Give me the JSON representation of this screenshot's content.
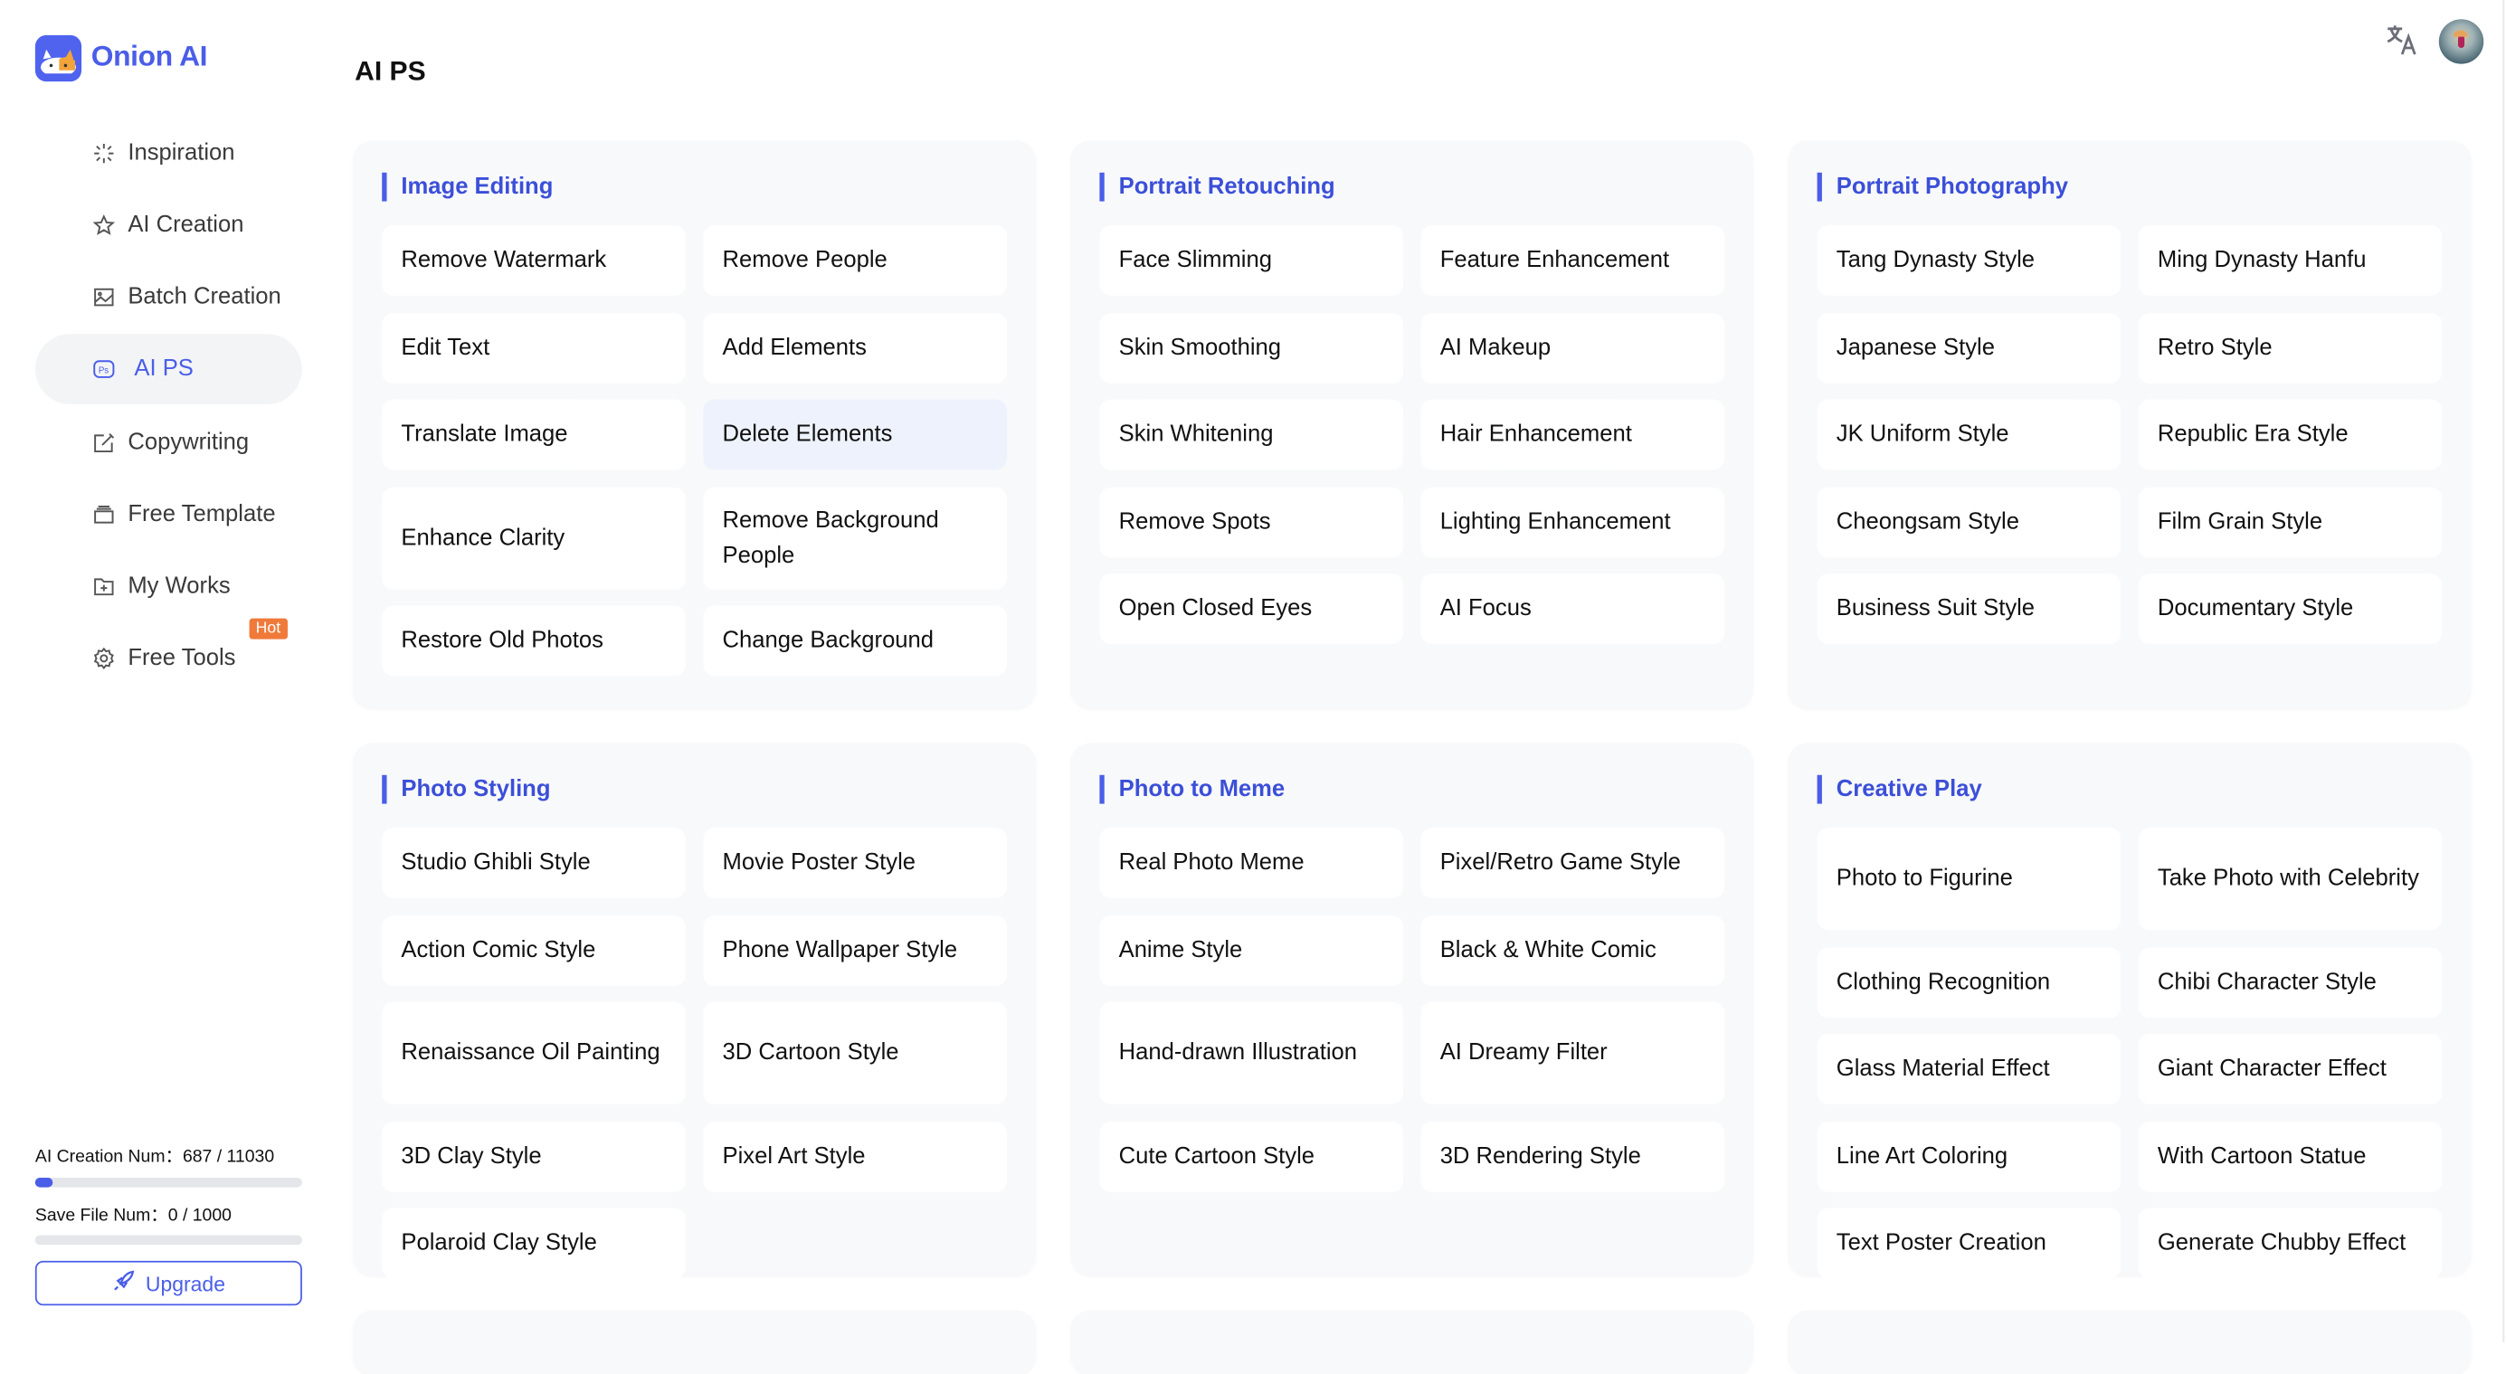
{
  "app": {
    "name": "Onion AI"
  },
  "sidebar": {
    "items": [
      {
        "label": "Inspiration",
        "icon": "sparkle-icon"
      },
      {
        "label": "AI Creation",
        "icon": "star-icon"
      },
      {
        "label": "Batch Creation",
        "icon": "image-icon"
      },
      {
        "label": "AI PS",
        "icon": "ps-icon",
        "active": true
      },
      {
        "label": "Copywriting",
        "icon": "edit-icon"
      },
      {
        "label": "Free Template",
        "icon": "template-icon"
      },
      {
        "label": "My Works",
        "icon": "folder-plus-icon"
      },
      {
        "label": "Free Tools",
        "icon": "gear-icon",
        "badge": "Hot"
      }
    ],
    "usage": {
      "ai_creation_label": "AI Creation Num：",
      "ai_creation_value": "687 / 11030",
      "ai_creation_fraction": 0.062,
      "save_file_label": "Save File Num：",
      "save_file_value": "0 / 1000",
      "save_file_fraction": 0
    },
    "upgrade_label": "Upgrade"
  },
  "header": {
    "title": "AI PS",
    "translate_icon": "translate-icon",
    "avatar": "user-avatar"
  },
  "colors": {
    "accent": "#4a5ee8",
    "hot": "#f07a3a",
    "card_bg": "#f8f9fb"
  },
  "sections": [
    {
      "title": "Image Editing",
      "items": [
        "Remove Watermark",
        "Remove People",
        "Edit Text",
        "Add Elements",
        "Translate Image",
        "Delete Elements",
        "Enhance Clarity",
        "Remove Background People",
        "Restore Old Photos",
        "Change Background"
      ],
      "highlighted": "Delete Elements"
    },
    {
      "title": "Portrait Retouching",
      "items": [
        "Face Slimming",
        "Feature Enhancement",
        "Skin Smoothing",
        "AI Makeup",
        "Skin Whitening",
        "Hair Enhancement",
        "Remove Spots",
        "Lighting Enhancement",
        "Open Closed Eyes",
        "AI Focus"
      ]
    },
    {
      "title": "Portrait Photography",
      "items": [
        "Tang Dynasty Style",
        "Ming Dynasty Hanfu",
        "Japanese Style",
        "Retro Style",
        "JK Uniform Style",
        "Republic Era Style",
        "Cheongsam Style",
        "Film Grain Style",
        "Business Suit Style",
        "Documentary Style"
      ]
    },
    {
      "title": "Photo Styling",
      "items": [
        "Studio Ghibli Style",
        "Movie Poster Style",
        "Action Comic Style",
        "Phone Wallpaper Style",
        "Renaissance Oil Painting",
        "3D Cartoon Style",
        "3D Clay Style",
        "Pixel Art Style",
        "Polaroid Clay Style"
      ]
    },
    {
      "title": "Photo to Meme",
      "items": [
        "Real Photo Meme",
        "Pixel/Retro Game Style",
        "Anime Style",
        "Black & White Comic",
        "Hand-drawn Illustration",
        "AI Dreamy Filter",
        "Cute Cartoon Style",
        "3D Rendering Style"
      ]
    },
    {
      "title": "Creative Play",
      "items": [
        "Photo to Figurine",
        "Take Photo with Celebrity",
        "Clothing Recognition",
        "Chibi Character Style",
        "Glass Material Effect",
        "Giant Character Effect",
        "Line Art Coloring",
        "With Cartoon Statue",
        "Text Poster Creation",
        "Generate Chubby Effect"
      ]
    }
  ]
}
